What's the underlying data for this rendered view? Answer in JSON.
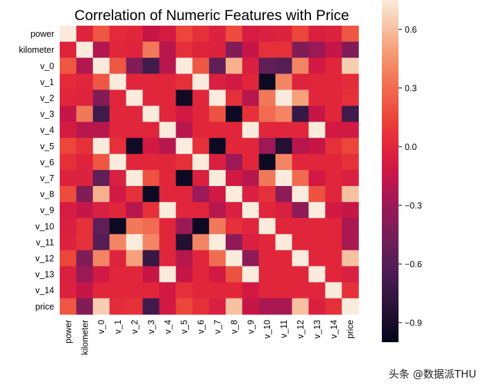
{
  "chart_data": {
    "type": "heatmap",
    "title": "Correlation of Numeric Features with Price",
    "labels": [
      "power",
      "kilometer",
      "v_0",
      "v_1",
      "v_2",
      "v_3",
      "v_4",
      "v_5",
      "v_6",
      "v_7",
      "v_8",
      "v_9",
      "v_10",
      "v_11",
      "v_12",
      "v_13",
      "v_14",
      "price"
    ],
    "colorbar": {
      "vmin": -1.0,
      "vmax": 0.75,
      "ticks": [
        0.6,
        0.3,
        0.0,
        -0.3,
        -0.6,
        -0.9
      ],
      "tick_labels": [
        "0.6",
        "0.3",
        "0.0",
        "−0.3",
        "−0.6",
        "−0.9"
      ]
    },
    "values": [
      [
        1.0,
        -0.02,
        0.22,
        0.02,
        0.0,
        -0.15,
        -0.08,
        0.15,
        0.05,
        -0.03,
        0.18,
        -0.07,
        -0.05,
        -0.03,
        0.15,
        -0.05,
        -0.03,
        0.22
      ],
      [
        -0.02,
        1.0,
        -0.22,
        0.0,
        -0.02,
        0.35,
        -0.2,
        0.05,
        -0.02,
        -0.03,
        -0.4,
        -0.15,
        0.05,
        0.05,
        -0.4,
        -0.3,
        -0.15,
        -0.4
      ],
      [
        0.22,
        -0.22,
        1.0,
        0.22,
        -0.4,
        -0.7,
        -0.2,
        0.75,
        0.22,
        -0.55,
        0.55,
        -0.05,
        -0.55,
        -0.6,
        0.4,
        -0.1,
        0.0,
        0.65
      ],
      [
        0.02,
        0.0,
        0.22,
        1.0,
        0.0,
        0.0,
        0.0,
        0.05,
        0.8,
        -0.05,
        -0.1,
        0.0,
        -0.95,
        0.4,
        -0.02,
        0.0,
        0.0,
        0.03
      ],
      [
        0.0,
        -0.02,
        -0.4,
        0.0,
        1.0,
        0.0,
        0.0,
        -0.93,
        0.0,
        0.85,
        0.05,
        -0.2,
        0.35,
        0.85,
        0.5,
        0.0,
        0.0,
        0.05
      ],
      [
        -0.15,
        0.35,
        -0.7,
        0.0,
        0.0,
        1.0,
        0.0,
        -0.1,
        0.0,
        0.2,
        -0.95,
        0.05,
        0.3,
        0.4,
        -0.75,
        -0.15,
        0.0,
        -0.7
      ],
      [
        -0.08,
        -0.2,
        -0.2,
        0.0,
        0.0,
        0.0,
        1.0,
        -0.2,
        0.0,
        0.0,
        0.0,
        0.9,
        0.0,
        0.0,
        0.0,
        0.9,
        -0.1,
        -0.1
      ],
      [
        0.15,
        0.05,
        0.75,
        0.05,
        -0.93,
        -0.1,
        -0.2,
        1.0,
        0.05,
        -0.95,
        0.0,
        0.0,
        -0.3,
        -0.85,
        -0.2,
        -0.15,
        0.05,
        0.15
      ],
      [
        0.05,
        -0.02,
        0.22,
        0.8,
        0.0,
        0.0,
        0.0,
        0.05,
        1.0,
        -0.05,
        -0.3,
        0.0,
        -0.95,
        0.4,
        0.0,
        0.0,
        0.0,
        0.05
      ],
      [
        -0.03,
        -0.03,
        -0.55,
        -0.05,
        0.85,
        0.2,
        0.0,
        -0.95,
        -0.05,
        1.0,
        -0.1,
        -0.2,
        0.35,
        0.85,
        0.3,
        -0.1,
        0.0,
        -0.05
      ],
      [
        0.18,
        -0.4,
        0.55,
        -0.1,
        0.05,
        -0.95,
        0.0,
        0.0,
        -0.3,
        -0.1,
        1.0,
        -0.05,
        0.05,
        -0.35,
        0.8,
        0.2,
        0.0,
        0.6
      ],
      [
        -0.07,
        -0.15,
        -0.05,
        0.0,
        -0.2,
        0.05,
        0.9,
        0.0,
        0.0,
        -0.2,
        -0.05,
        1.0,
        0.0,
        -0.05,
        -0.35,
        0.9,
        -0.1,
        -0.15
      ],
      [
        -0.05,
        0.05,
        -0.55,
        -0.95,
        0.35,
        0.3,
        0.0,
        -0.3,
        -0.95,
        0.35,
        0.05,
        0.0,
        1.0,
        0.0,
        0.0,
        0.0,
        0.0,
        -0.25
      ],
      [
        -0.03,
        0.05,
        -0.6,
        0.4,
        0.85,
        0.4,
        0.0,
        -0.85,
        0.4,
        0.85,
        -0.35,
        -0.05,
        0.0,
        1.0,
        0.0,
        0.0,
        0.0,
        -0.25
      ],
      [
        0.15,
        -0.4,
        0.4,
        -0.02,
        0.5,
        -0.75,
        0.0,
        -0.2,
        0.0,
        0.3,
        0.8,
        -0.35,
        0.0,
        0.0,
        1.0,
        0.0,
        0.0,
        0.6
      ],
      [
        -0.05,
        -0.3,
        -0.1,
        0.0,
        0.0,
        -0.15,
        0.9,
        -0.15,
        0.0,
        -0.1,
        0.2,
        0.9,
        0.0,
        0.0,
        0.0,
        1.0,
        0.0,
        -0.05
      ],
      [
        -0.03,
        -0.15,
        0.0,
        0.0,
        0.0,
        0.0,
        -0.1,
        0.05,
        0.0,
        0.0,
        0.0,
        -0.1,
        0.0,
        0.0,
        0.0,
        0.0,
        1.0,
        0.05
      ],
      [
        0.22,
        -0.4,
        0.65,
        0.03,
        0.05,
        -0.7,
        -0.1,
        0.15,
        0.05,
        -0.05,
        0.6,
        -0.15,
        -0.25,
        -0.25,
        0.6,
        -0.05,
        0.05,
        1.0
      ]
    ]
  },
  "watermark": "头条 @数据派THU"
}
